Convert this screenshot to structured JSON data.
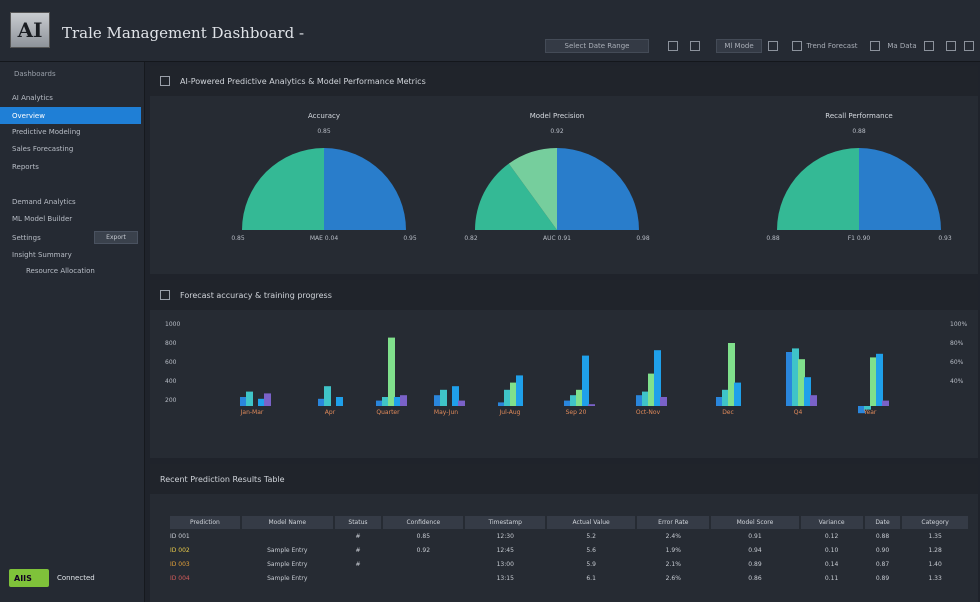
{
  "app": {
    "logo_text": "AI",
    "title": "Trale Management Dashboard -"
  },
  "topbar": {
    "filter_label": "Select Date Range",
    "toggle_label": "Ml Mode",
    "report_label": "Trend Forecast",
    "view_label": "Ma Data"
  },
  "sidebar": {
    "header": "Dashboards",
    "items": [
      {
        "label": "AI Analytics",
        "active": false
      },
      {
        "label": "Overview",
        "active": true
      },
      {
        "label": "Predictive Modeling",
        "active": false
      },
      {
        "label": "Sales Forecasting",
        "active": false
      },
      {
        "label": "Reports",
        "active": false
      },
      {
        "label": "Demand Analytics",
        "active": false
      },
      {
        "label": "ML Model Builder",
        "active": false
      },
      {
        "label": "Settings",
        "active": false
      },
      {
        "label": "Insight Summary",
        "active": false
      },
      {
        "label": "Resource Allocation",
        "active": false
      }
    ],
    "settings_button": "Export",
    "footer_badge": "AIIS",
    "footer_text": "Connected"
  },
  "panel1": {
    "title": "AI-Powered Predictive Analytics & Model Performance Metrics"
  },
  "panel2": {
    "title": "Forecast accuracy & training progress"
  },
  "panel3": {
    "title": "Recent Prediction Results Table"
  },
  "chart_data": [
    {
      "type": "pie",
      "title": "Accuracy",
      "subtitle": "0.85",
      "labels": [
        "0.85",
        "MAE 0.04",
        "0.95"
      ],
      "slices": [
        {
          "value": 50,
          "color": "#36c9a0"
        },
        {
          "value": 50,
          "color": "#2a86dc"
        }
      ]
    },
    {
      "type": "pie",
      "title": "Model Precision",
      "subtitle": "0.92",
      "labels": [
        "0.82",
        "AUC 0.91",
        "0.98"
      ],
      "slices": [
        {
          "value": 30,
          "color": "#36c9a0"
        },
        {
          "value": 20,
          "color": "#7fe0a8"
        },
        {
          "value": 50,
          "color": "#2a86dc"
        }
      ]
    },
    {
      "type": "pie",
      "title": "Recall Performance",
      "subtitle": "0.88",
      "labels": [
        "0.88",
        "F1 0.90",
        "0.93"
      ],
      "slices": [
        {
          "value": 50,
          "color": "#36c9a0"
        },
        {
          "value": 50,
          "color": "#2a86dc"
        }
      ]
    },
    {
      "type": "bar",
      "title": "Forecast accuracy & training progress",
      "categories": [
        "Jan-Mar",
        "Apr",
        "Quarter",
        "May-Jun",
        "Jul-Aug",
        "Sep 20",
        "Oct-Nov",
        "Dec",
        "Q4",
        "Year"
      ],
      "y_ticks_left": [
        "1000",
        "800",
        "600",
        "400",
        "200"
      ],
      "y_ticks_right": [
        "100%",
        "80%",
        "60%",
        "40%"
      ],
      "series": [
        {
          "color": "#2a86dc",
          "values": [
            10,
            8,
            6,
            12,
            4,
            6,
            12,
            10,
            60,
            -8
          ]
        },
        {
          "color": "#3fc4c8",
          "values": [
            16,
            22,
            10,
            18,
            18,
            12,
            16,
            18,
            64,
            -4
          ]
        },
        {
          "color": "#80e08c",
          "values": [
            0,
            0,
            76,
            0,
            26,
            18,
            36,
            70,
            52,
            54
          ]
        },
        {
          "color": "#1fa0ea",
          "values": [
            8,
            10,
            10,
            22,
            34,
            56,
            62,
            26,
            32,
            58
          ]
        },
        {
          "color": "#7a62c8",
          "values": [
            14,
            0,
            12,
            6,
            0,
            2,
            10,
            0,
            12,
            6
          ]
        }
      ],
      "ylim": [
        -10,
        100
      ]
    }
  ],
  "table": {
    "headers": [
      "Prediction",
      "Model Name",
      "Status",
      "Confidence",
      "Timestamp",
      "Actual Value",
      "Error Rate",
      "Model Score",
      "Variance",
      "Date",
      "Category"
    ],
    "rows": [
      [
        "ID 001",
        "",
        "#",
        "0.85",
        "12:30",
        "5.2",
        "2.4%",
        "0.91",
        "0.12",
        "0.88",
        "1.35"
      ],
      [
        "ID 002",
        "Sample Entry",
        "#",
        "0.92",
        "12:45",
        "5.6",
        "1.9%",
        "0.94",
        "0.10",
        "0.90",
        "1.28"
      ],
      [
        "ID 003",
        "Sample Entry",
        "#",
        "",
        "13:00",
        "5.9",
        "2.1%",
        "0.89",
        "0.14",
        "0.87",
        "1.40"
      ],
      [
        "ID 004",
        "Sample Entry",
        "",
        "",
        "13:15",
        "6.1",
        "2.6%",
        "0.86",
        "0.11",
        "0.89",
        "1.33"
      ]
    ],
    "row_colors": [
      "#c8ccd4",
      "#e7c94a",
      "#e3a13a",
      "#d25b5b"
    ]
  }
}
